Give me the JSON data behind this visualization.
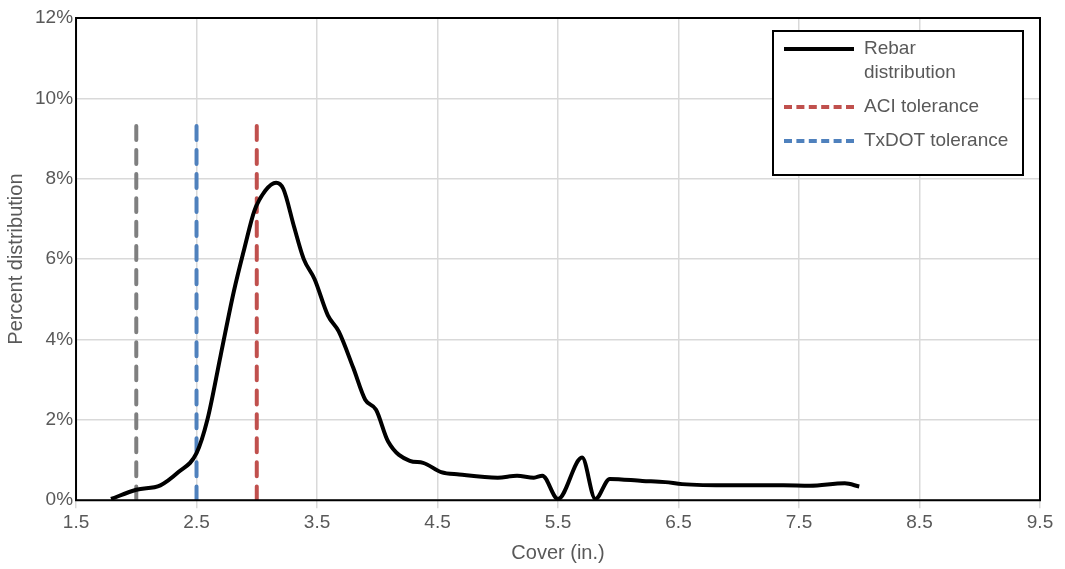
{
  "chart_data": {
    "type": "line",
    "xlabel": "Cover (in.)",
    "ylabel": "Percent distribution",
    "xlim": [
      1.5,
      9.5
    ],
    "xticks": [
      1.5,
      2.5,
      3.5,
      4.5,
      5.5,
      6.5,
      7.5,
      8.5,
      9.5
    ],
    "ylim": [
      0,
      12
    ],
    "yticks": [
      {
        "value": 0,
        "label": "0%"
      },
      {
        "value": 2,
        "label": "2%"
      },
      {
        "value": 4,
        "label": "4%"
      },
      {
        "value": 6,
        "label": "6%"
      },
      {
        "value": 8,
        "label": "8%"
      },
      {
        "value": 10,
        "label": "10%"
      },
      {
        "value": 12,
        "label": "12%"
      }
    ],
    "grid": true,
    "legend": "top right",
    "marker": "none",
    "series": [
      {
        "name": "Rebar distribution",
        "color": "#000000",
        "line_style": "solid",
        "x": [
          1.79,
          2.0,
          2.2,
          2.35,
          2.5,
          2.59,
          2.7,
          2.81,
          2.9,
          2.98,
          3.07,
          3.16,
          3.22,
          3.31,
          3.39,
          3.48,
          3.59,
          3.68,
          3.8,
          3.9,
          3.99,
          4.09,
          4.27,
          4.38,
          4.53,
          4.68,
          5.0,
          5.16,
          5.3,
          5.37,
          5.5,
          5.7,
          5.81,
          5.93,
          6.2,
          6.39,
          6.53,
          6.94,
          7.37,
          7.59,
          7.88,
          8.0
        ],
        "values": [
          0.03,
          0.26,
          0.37,
          0.7,
          1.17,
          2.0,
          3.6,
          5.2,
          6.3,
          7.2,
          7.7,
          7.9,
          7.75,
          6.8,
          6.0,
          5.5,
          4.6,
          4.2,
          3.3,
          2.5,
          2.25,
          1.46,
          0.98,
          0.93,
          0.7,
          0.64,
          0.56,
          0.61,
          0.56,
          0.61,
          0.03,
          1.06,
          0.03,
          0.53,
          0.48,
          0.45,
          0.4,
          0.37,
          0.37,
          0.36,
          0.42,
          0.34
        ]
      },
      {
        "name": "ACI tolerance",
        "color": "#c0504d",
        "line_style": "dashed",
        "x": [
          3,
          3
        ],
        "values": [
          0,
          9.4
        ]
      },
      {
        "name": "TxDOT tolerance",
        "color": "#4f81bd",
        "line_style": "dashed",
        "x": [
          2.5,
          2.5
        ],
        "values": [
          0,
          9.4
        ]
      },
      {
        "color": "#7f7f7f",
        "line_style": "dashed",
        "x": [
          2,
          2
        ],
        "values": [
          0,
          9.4
        ]
      }
    ]
  }
}
